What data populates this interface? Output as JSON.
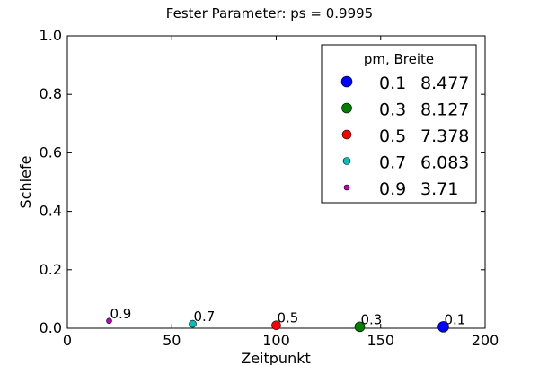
{
  "chart_data": {
    "type": "scatter",
    "title": "Fester Parameter: ps = 0.9995",
    "xlabel": "Zeitpunkt",
    "ylabel": "Schiefe",
    "xlim": [
      0,
      200
    ],
    "ylim": [
      0.0,
      1.0
    ],
    "x_ticks": [
      "0",
      "50",
      "100",
      "150",
      "200"
    ],
    "y_ticks": [
      "0.0",
      "0.2",
      "0.4",
      "0.6",
      "0.8",
      "1.0"
    ],
    "grid": false,
    "legend": {
      "placement": "top-right",
      "title": "pm,  Breite",
      "entries": [
        {
          "pm": "0.1",
          "breite": "8.477",
          "color": "#0000ff"
        },
        {
          "pm": "0.3",
          "breite": "8.127",
          "color": "#008000"
        },
        {
          "pm": "0.5",
          "breite": "7.378",
          "color": "#ff0000"
        },
        {
          "pm": "0.7",
          "breite": "6.083",
          "color": "#00bfbf"
        },
        {
          "pm": "0.9",
          "breite": "3.71",
          "color": "#bf00bf"
        }
      ]
    },
    "series": [
      {
        "name": "0.1  8.477",
        "color": "#0000ff",
        "points": [
          {
            "x": 180,
            "y": 0.005,
            "label": "0.1"
          }
        ]
      },
      {
        "name": "0.3  8.127",
        "color": "#008000",
        "points": [
          {
            "x": 140,
            "y": 0.005,
            "label": "0.3"
          }
        ]
      },
      {
        "name": "0.5  7.378",
        "color": "#ff0000",
        "points": [
          {
            "x": 100,
            "y": 0.01,
            "label": "0.5"
          }
        ]
      },
      {
        "name": "0.7  6.083",
        "color": "#00bfbf",
        "points": [
          {
            "x": 60,
            "y": 0.015,
            "label": "0.7"
          }
        ]
      },
      {
        "name": "0.9  3.71",
        "color": "#bf00bf",
        "points": [
          {
            "x": 20,
            "y": 0.025,
            "label": "0.9"
          }
        ]
      }
    ]
  }
}
